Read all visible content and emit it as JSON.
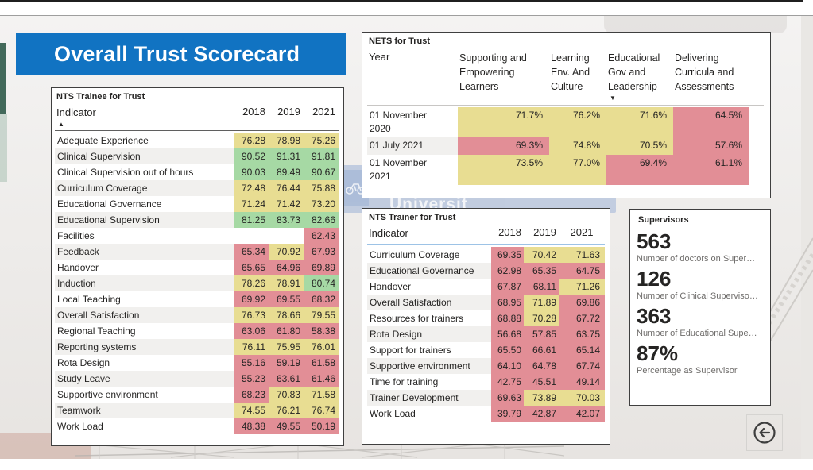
{
  "page": {
    "title": "Overall Trust Scorecard"
  },
  "colors": {
    "banner_blue": "#1173c2",
    "green": "#a6d9a4",
    "yellow": "#e8dd92",
    "red": "#e28e96"
  },
  "icons": {
    "sort_ascending": "▲",
    "sort_descending": "▼"
  },
  "background": {
    "sign_text": "Universit"
  },
  "trainee_table": {
    "title": "NTS Trainee for Trust",
    "indicator_header": "Indicator",
    "years": [
      "2018",
      "2019",
      "2021"
    ],
    "rows": [
      {
        "label": "Adequate Experience",
        "values": [
          "76.28",
          "78.98",
          "75.26"
        ],
        "cells": [
          "yellow",
          "yellow",
          "yellow"
        ]
      },
      {
        "label": "Clinical Supervision",
        "values": [
          "90.52",
          "91.31",
          "91.81"
        ],
        "cells": [
          "green",
          "green",
          "green"
        ]
      },
      {
        "label": "Clinical Supervision out of hours",
        "values": [
          "90.03",
          "89.49",
          "90.67"
        ],
        "cells": [
          "green",
          "green",
          "green"
        ]
      },
      {
        "label": "Curriculum Coverage",
        "values": [
          "72.48",
          "76.44",
          "75.88"
        ],
        "cells": [
          "yellow",
          "yellow",
          "yellow"
        ]
      },
      {
        "label": "Educational Governance",
        "values": [
          "71.24",
          "71.42",
          "73.20"
        ],
        "cells": [
          "yellow",
          "yellow",
          "yellow"
        ]
      },
      {
        "label": "Educational Supervision",
        "values": [
          "81.25",
          "83.73",
          "82.66"
        ],
        "cells": [
          "green",
          "green",
          "green"
        ]
      },
      {
        "label": "Facilities",
        "values": [
          "",
          "",
          "62.43"
        ],
        "cells": [
          "none",
          "none",
          "red"
        ]
      },
      {
        "label": "Feedback",
        "values": [
          "65.34",
          "70.92",
          "67.93"
        ],
        "cells": [
          "red",
          "yellow",
          "red"
        ]
      },
      {
        "label": "Handover",
        "values": [
          "65.65",
          "64.96",
          "69.89"
        ],
        "cells": [
          "red",
          "red",
          "red"
        ]
      },
      {
        "label": "Induction",
        "values": [
          "78.26",
          "78.91",
          "80.74"
        ],
        "cells": [
          "yellow",
          "yellow",
          "green"
        ]
      },
      {
        "label": "Local Teaching",
        "values": [
          "69.92",
          "69.55",
          "68.32"
        ],
        "cells": [
          "red",
          "red",
          "red"
        ]
      },
      {
        "label": "Overall Satisfaction",
        "values": [
          "76.73",
          "78.66",
          "79.55"
        ],
        "cells": [
          "yellow",
          "yellow",
          "yellow"
        ]
      },
      {
        "label": "Regional Teaching",
        "values": [
          "63.06",
          "61.80",
          "58.38"
        ],
        "cells": [
          "red",
          "red",
          "red"
        ]
      },
      {
        "label": "Reporting systems",
        "values": [
          "76.11",
          "75.95",
          "76.01"
        ],
        "cells": [
          "yellow",
          "yellow",
          "yellow"
        ]
      },
      {
        "label": "Rota Design",
        "values": [
          "55.16",
          "59.19",
          "61.58"
        ],
        "cells": [
          "red",
          "red",
          "red"
        ]
      },
      {
        "label": "Study Leave",
        "values": [
          "55.23",
          "63.61",
          "61.46"
        ],
        "cells": [
          "red",
          "red",
          "red"
        ]
      },
      {
        "label": "Supportive environment",
        "values": [
          "68.23",
          "70.83",
          "71.58"
        ],
        "cells": [
          "red",
          "yellow",
          "yellow"
        ]
      },
      {
        "label": "Teamwork",
        "values": [
          "74.55",
          "76.21",
          "76.74"
        ],
        "cells": [
          "yellow",
          "yellow",
          "yellow"
        ]
      },
      {
        "label": "Work Load",
        "values": [
          "48.38",
          "49.55",
          "50.19"
        ],
        "cells": [
          "red",
          "red",
          "red"
        ]
      }
    ]
  },
  "nets_table": {
    "title": "NETS for Trust",
    "year_header": "Year",
    "columns": [
      {
        "label": "Supporting and Empowering Learners"
      },
      {
        "label": "Learning Env. And Culture"
      },
      {
        "label": "Educational Gov and Leadership",
        "sorted": "desc"
      },
      {
        "label": "Delivering Curricula and Assessments"
      }
    ],
    "rows": [
      {
        "label": "01 November 2020",
        "values": [
          "71.7%",
          "76.2%",
          "71.6%",
          "64.5%"
        ],
        "cells": [
          "yellow",
          "yellow",
          "yellow",
          "red"
        ]
      },
      {
        "label": "01 July 2021",
        "values": [
          "69.3%",
          "74.8%",
          "70.5%",
          "57.6%"
        ],
        "cells": [
          "red",
          "yellow",
          "yellow",
          "red"
        ]
      },
      {
        "label": "01 November 2021",
        "values": [
          "73.5%",
          "77.0%",
          "69.4%",
          "61.1%"
        ],
        "cells": [
          "yellow",
          "yellow",
          "red",
          "red"
        ]
      }
    ]
  },
  "trainer_table": {
    "title": "NTS Trainer for Trust",
    "indicator_header": "Indicator",
    "years": [
      "2018",
      "2019",
      "2021"
    ],
    "rows": [
      {
        "label": "Curriculum Coverage",
        "values": [
          "69.35",
          "70.42",
          "71.63"
        ],
        "cells": [
          "red",
          "yellow",
          "yellow"
        ]
      },
      {
        "label": "Educational Governance",
        "values": [
          "62.98",
          "65.35",
          "64.75"
        ],
        "cells": [
          "red",
          "red",
          "red"
        ]
      },
      {
        "label": "Handover",
        "values": [
          "67.87",
          "68.11",
          "71.26"
        ],
        "cells": [
          "red",
          "red",
          "yellow"
        ]
      },
      {
        "label": "Overall Satisfaction",
        "values": [
          "68.95",
          "71.89",
          "69.86"
        ],
        "cells": [
          "red",
          "yellow",
          "red"
        ]
      },
      {
        "label": "Resources for trainers",
        "values": [
          "68.88",
          "70.28",
          "67.72"
        ],
        "cells": [
          "red",
          "yellow",
          "red"
        ]
      },
      {
        "label": "Rota Design",
        "values": [
          "56.68",
          "57.85",
          "63.75"
        ],
        "cells": [
          "red",
          "red",
          "red"
        ]
      },
      {
        "label": "Support for trainers",
        "values": [
          "65.50",
          "66.61",
          "65.14"
        ],
        "cells": [
          "red",
          "red",
          "red"
        ]
      },
      {
        "label": "Supportive environment",
        "values": [
          "64.10",
          "64.78",
          "67.74"
        ],
        "cells": [
          "red",
          "red",
          "red"
        ]
      },
      {
        "label": "Time for training",
        "values": [
          "42.75",
          "45.51",
          "49.14"
        ],
        "cells": [
          "red",
          "red",
          "red"
        ]
      },
      {
        "label": "Trainer Development",
        "values": [
          "69.63",
          "73.89",
          "70.03"
        ],
        "cells": [
          "red",
          "yellow",
          "yellow"
        ]
      },
      {
        "label": "Work Load",
        "values": [
          "39.79",
          "42.87",
          "42.07"
        ],
        "cells": [
          "red",
          "red",
          "red"
        ]
      }
    ]
  },
  "supervisors": {
    "title": "Supervisors",
    "kpis": [
      {
        "value": "563",
        "caption": "Number of doctors on Super…"
      },
      {
        "value": "126",
        "caption": "Number of Clinical Superviso…"
      },
      {
        "value": "363",
        "caption": "Number of Educational Supe…"
      },
      {
        "value": "87%",
        "caption": "Percentage as Supervisor"
      }
    ]
  }
}
